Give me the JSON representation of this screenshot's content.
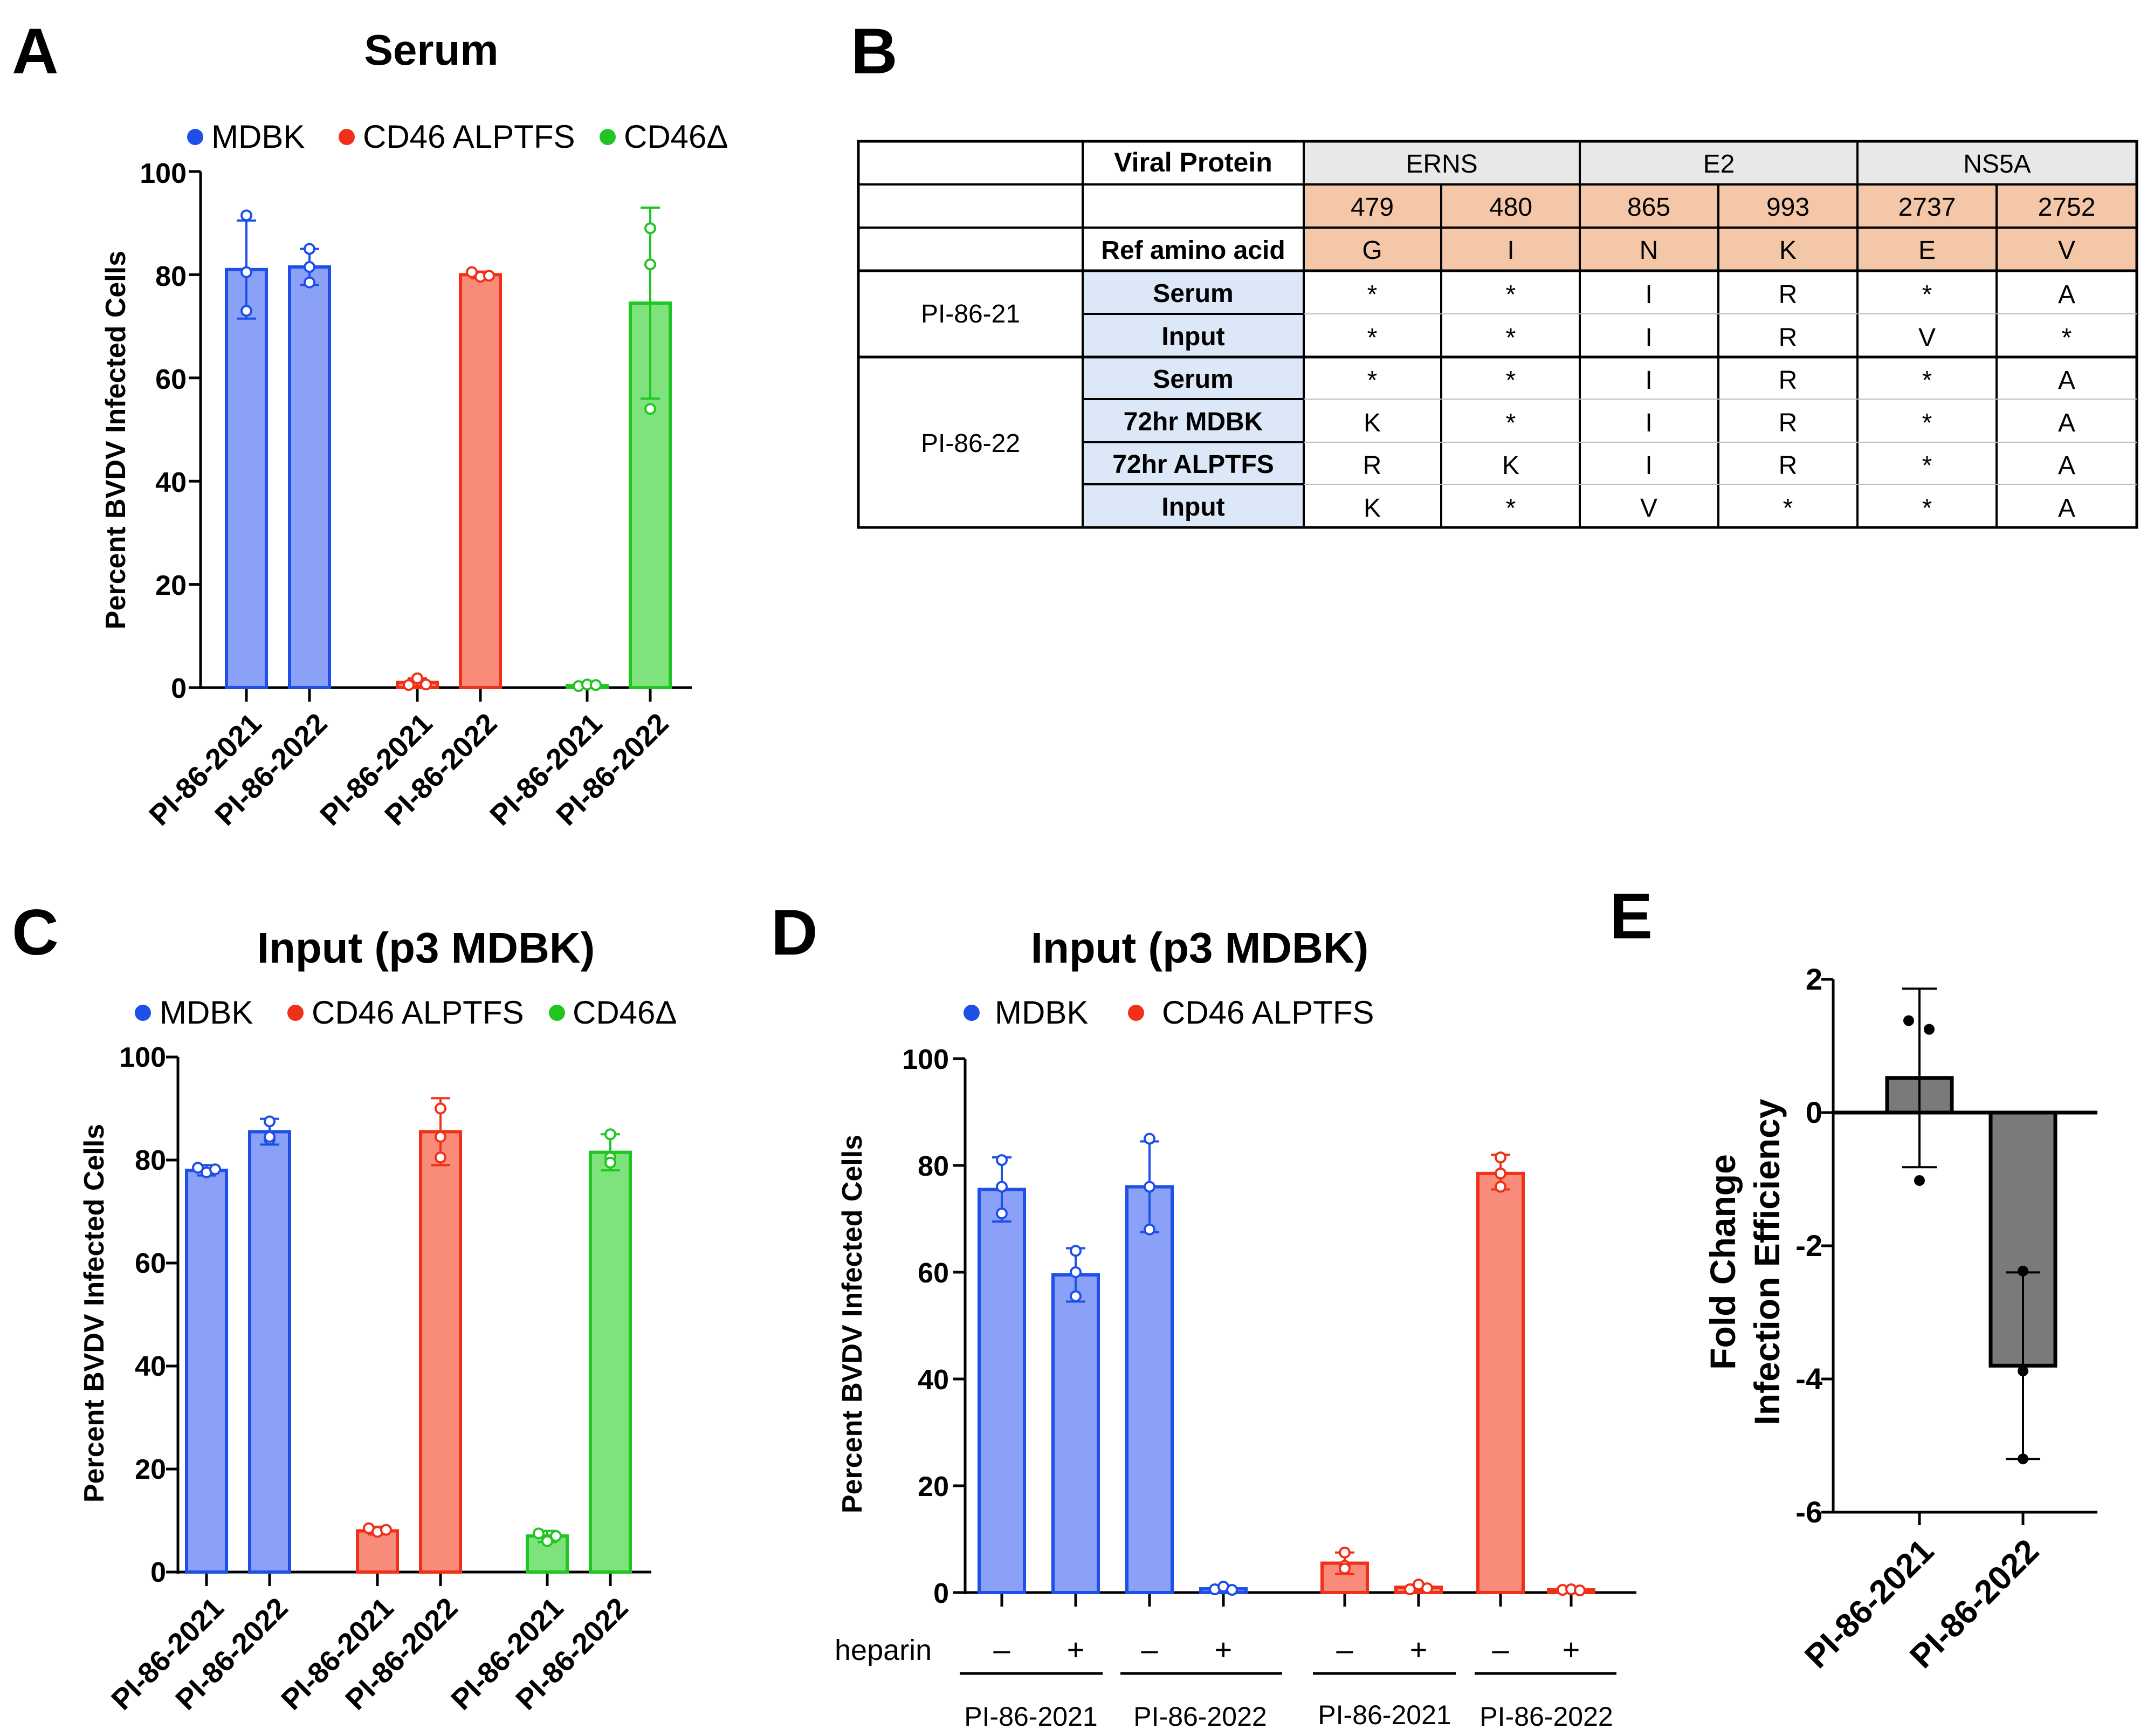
{
  "colors": {
    "blue_fill": "#8aa1f7",
    "blue_stroke": "#1e4fe6",
    "red_fill": "#f98b7a",
    "red_stroke": "#f03018",
    "green_fill": "#7fe37d",
    "green_stroke": "#21c521",
    "gray_fill": "#7a7a7a",
    "header_gray": "#e8e8e8",
    "header_peach": "#f5c7a9",
    "label_blue": "#dce8f8"
  },
  "panels": {
    "A": {
      "letter": "A",
      "title": "Serum",
      "legend": [
        "MDBK",
        "CD46 ALPTFS",
        "CD46Δ"
      ],
      "ylabel": "Percent BVDV Infected Cells",
      "yticks": [
        "0",
        "20",
        "40",
        "60",
        "80",
        "100"
      ],
      "categories": [
        "PI-86-2021",
        "PI-86-2022",
        "PI-86-2021",
        "PI-86-2022",
        "PI-86-2021",
        "PI-86-2022"
      ]
    },
    "B": {
      "letter": "B",
      "header_label": "Viral Protein",
      "proteins": [
        "ERNS",
        "E2",
        "NS5A"
      ],
      "positions": [
        "479",
        "480",
        "865",
        "993",
        "2737",
        "2752"
      ],
      "ref_label": "Ref amino acid",
      "ref_values": [
        "G",
        "I",
        "N",
        "K",
        "E",
        "V"
      ],
      "groups": [
        {
          "name": "PI-86-21",
          "rows": [
            {
              "label": "Serum",
              "values": [
                "*",
                "*",
                "I",
                "R",
                "*",
                "A"
              ]
            },
            {
              "label": "Input",
              "values": [
                "*",
                "*",
                "I",
                "R",
                "V",
                "*"
              ]
            }
          ]
        },
        {
          "name": "PI-86-22",
          "rows": [
            {
              "label": "Serum",
              "values": [
                "*",
                "*",
                "I",
                "R",
                "*",
                "A"
              ]
            },
            {
              "label": "72hr MDBK",
              "values": [
                "K",
                "*",
                "I",
                "R",
                "*",
                "A"
              ]
            },
            {
              "label": "72hr ALPTFS",
              "values": [
                "R",
                "K",
                "I",
                "R",
                "*",
                "A"
              ]
            },
            {
              "label": "Input",
              "values": [
                "K",
                "*",
                "V",
                "*",
                "*",
                "A"
              ]
            }
          ]
        }
      ]
    },
    "C": {
      "letter": "C",
      "title": "Input (p3 MDBK)",
      "legend": [
        "MDBK",
        "CD46 ALPTFS",
        "CD46Δ"
      ],
      "ylabel": "Percent BVDV Infected Cells",
      "yticks": [
        "0",
        "20",
        "40",
        "60",
        "80",
        "100"
      ],
      "categories": [
        "PI-86-2021",
        "PI-86-2022",
        "PI-86-2021",
        "PI-86-2022",
        "PI-86-2021",
        "PI-86-2022"
      ]
    },
    "D": {
      "letter": "D",
      "title": "Input (p3 MDBK)",
      "legend": [
        "MDBK",
        "CD46 ALPTFS"
      ],
      "ylabel": "Percent BVDV Infected Cells",
      "yticks": [
        "0",
        "20",
        "40",
        "60",
        "80",
        "100"
      ],
      "heparin_label": "heparin",
      "heparin_signs": [
        "–",
        "+",
        "–",
        "+",
        "–",
        "+",
        "–",
        "+"
      ],
      "group_labels": [
        "PI-86-2021",
        "PI-86-2022",
        "PI-86-2021",
        "PI-86-2022"
      ]
    },
    "E": {
      "letter": "E",
      "ylabel_line1": "Fold Change",
      "ylabel_line2": "Infection Efficiency",
      "yticks": [
        "-6",
        "-4",
        "-2",
        "0",
        "2"
      ],
      "categories": [
        "PI-86-2021",
        "PI-86-2022"
      ]
    }
  },
  "chart_data": [
    {
      "id": "A",
      "type": "bar",
      "title": "Serum",
      "ylabel": "Percent BVDV Infected Cells",
      "ylim": [
        0,
        100
      ],
      "legend": [
        "MDBK",
        "CD46 ALPTFS",
        "CD46Δ"
      ],
      "categories": [
        "PI-86-2021",
        "PI-86-2022",
        "PI-86-2021",
        "PI-86-2022",
        "PI-86-2021",
        "PI-86-2022"
      ],
      "bars": [
        {
          "series": "MDBK",
          "mean": 81,
          "err_low": 71.5,
          "err_high": 90.5,
          "points": [
            91.5,
            80.5,
            73
          ]
        },
        {
          "series": "MDBK",
          "mean": 81.5,
          "err_low": 78,
          "err_high": 85,
          "points": [
            85,
            81.5,
            78.5
          ]
        },
        {
          "series": "CD46 ALPTFS",
          "mean": 1,
          "err_low": 0.3,
          "err_high": 1.8,
          "points": [
            0.5,
            1.8,
            0.6
          ]
        },
        {
          "series": "CD46 ALPTFS",
          "mean": 80,
          "err_low": 79.3,
          "err_high": 80.6,
          "points": [
            80.5,
            79.6,
            79.8
          ]
        },
        {
          "series": "CD46Δ",
          "mean": 0.4,
          "err_low": 0.1,
          "err_high": 0.7,
          "points": [
            0.3,
            0.6,
            0.5
          ]
        },
        {
          "series": "CD46Δ",
          "mean": 74.5,
          "err_low": 56,
          "err_high": 93,
          "points": [
            89,
            82,
            54
          ]
        }
      ]
    },
    {
      "id": "B",
      "type": "table",
      "columns": [
        "ERNS 479",
        "ERNS 480",
        "E2 865",
        "E2 993",
        "NS5A 2737",
        "NS5A 2752"
      ],
      "reference": [
        "G",
        "I",
        "N",
        "K",
        "E",
        "V"
      ],
      "rows": [
        [
          "PI-86-21",
          "Serum",
          "*",
          "*",
          "I",
          "R",
          "*",
          "A"
        ],
        [
          "PI-86-21",
          "Input",
          "*",
          "*",
          "I",
          "R",
          "V",
          "*"
        ],
        [
          "PI-86-22",
          "Serum",
          "*",
          "*",
          "I",
          "R",
          "*",
          "A"
        ],
        [
          "PI-86-22",
          "72hr MDBK",
          "K",
          "*",
          "I",
          "R",
          "*",
          "A"
        ],
        [
          "PI-86-22",
          "72hr ALPTFS",
          "R",
          "K",
          "I",
          "R",
          "*",
          "A"
        ],
        [
          "PI-86-22",
          "Input",
          "K",
          "*",
          "V",
          "*",
          "*",
          "A"
        ]
      ]
    },
    {
      "id": "C",
      "type": "bar",
      "title": "Input (p3 MDBK)",
      "ylabel": "Percent BVDV Infected Cells",
      "ylim": [
        0,
        100
      ],
      "legend": [
        "MDBK",
        "CD46 ALPTFS",
        "CD46Δ"
      ],
      "categories": [
        "PI-86-2021",
        "PI-86-2022",
        "PI-86-2021",
        "PI-86-2022",
        "PI-86-2021",
        "PI-86-2022"
      ],
      "bars": [
        {
          "series": "MDBK",
          "mean": 78,
          "err_low": 77,
          "err_high": 79,
          "points": [
            78.5,
            77.6,
            78.2
          ]
        },
        {
          "series": "MDBK",
          "mean": 85.5,
          "err_low": 83,
          "err_high": 88,
          "points": [
            87.5,
            84,
            84.5
          ]
        },
        {
          "series": "CD46 ALPTFS",
          "mean": 8,
          "err_low": 7.3,
          "err_high": 8.8,
          "points": [
            8.5,
            7.8,
            8.2
          ]
        },
        {
          "series": "CD46 ALPTFS",
          "mean": 85.5,
          "err_low": 79,
          "err_high": 92,
          "points": [
            90,
            84.5,
            80.5
          ]
        },
        {
          "series": "CD46Δ",
          "mean": 7,
          "err_low": 5.8,
          "err_high": 8,
          "points": [
            7.5,
            6,
            7
          ]
        },
        {
          "series": "CD46Δ",
          "mean": 81.5,
          "err_low": 78,
          "err_high": 85,
          "points": [
            85,
            80.5,
            79.5
          ]
        }
      ]
    },
    {
      "id": "D",
      "type": "bar",
      "title": "Input (p3 MDBK)",
      "ylabel": "Percent BVDV Infected Cells",
      "ylim": [
        0,
        100
      ],
      "legend": [
        "MDBK",
        "CD46 ALPTFS"
      ],
      "bars": [
        {
          "series": "MDBK",
          "strain": "PI-86-2021",
          "heparin": "–",
          "mean": 75.5,
          "err_low": 69.5,
          "err_high": 81.5,
          "points": [
            81,
            76,
            71
          ]
        },
        {
          "series": "MDBK",
          "strain": "PI-86-2021",
          "heparin": "+",
          "mean": 59.5,
          "err_low": 54.5,
          "err_high": 64.5,
          "points": [
            64,
            60,
            55.5
          ]
        },
        {
          "series": "MDBK",
          "strain": "PI-86-2022",
          "heparin": "–",
          "mean": 76,
          "err_low": 67.5,
          "err_high": 84.5,
          "points": [
            85,
            76,
            68
          ]
        },
        {
          "series": "MDBK",
          "strain": "PI-86-2022",
          "heparin": "+",
          "mean": 0.7,
          "err_low": 0.3,
          "err_high": 1.1,
          "points": [
            0.6,
            1.1,
            0.5
          ]
        },
        {
          "series": "CD46 ALPTFS",
          "strain": "PI-86-2021",
          "heparin": "–",
          "mean": 5.5,
          "err_low": 3.5,
          "err_high": 7.5,
          "points": [
            7.5,
            5,
            4.5
          ]
        },
        {
          "series": "CD46 ALPTFS",
          "strain": "PI-86-2021",
          "heparin": "+",
          "mean": 1,
          "err_low": 0.5,
          "err_high": 1.5,
          "points": [
            0.6,
            1.5,
            0.8
          ]
        },
        {
          "series": "CD46 ALPTFS",
          "strain": "PI-86-2022",
          "heparin": "–",
          "mean": 78.5,
          "err_low": 75.5,
          "err_high": 82,
          "points": [
            81.5,
            78.5,
            76
          ]
        },
        {
          "series": "CD46 ALPTFS",
          "strain": "PI-86-2022",
          "heparin": "+",
          "mean": 0.5,
          "err_low": 0.2,
          "err_high": 0.8,
          "points": [
            0.5,
            0.6,
            0.4
          ]
        }
      ]
    },
    {
      "id": "E",
      "type": "bar",
      "ylabel": "Fold Change Infection Efficiency",
      "ylim": [
        -6,
        2
      ],
      "categories": [
        "PI-86-2021",
        "PI-86-2022"
      ],
      "bars": [
        {
          "mean": 0.52,
          "err_low": -0.82,
          "err_high": 1.86,
          "points": [
            1.38,
            1.25,
            -1.02
          ]
        },
        {
          "mean": -3.8,
          "err_low": -5.2,
          "err_high": -2.4,
          "points": [
            -2.38,
            -3.88,
            -5.2
          ]
        }
      ]
    }
  ]
}
